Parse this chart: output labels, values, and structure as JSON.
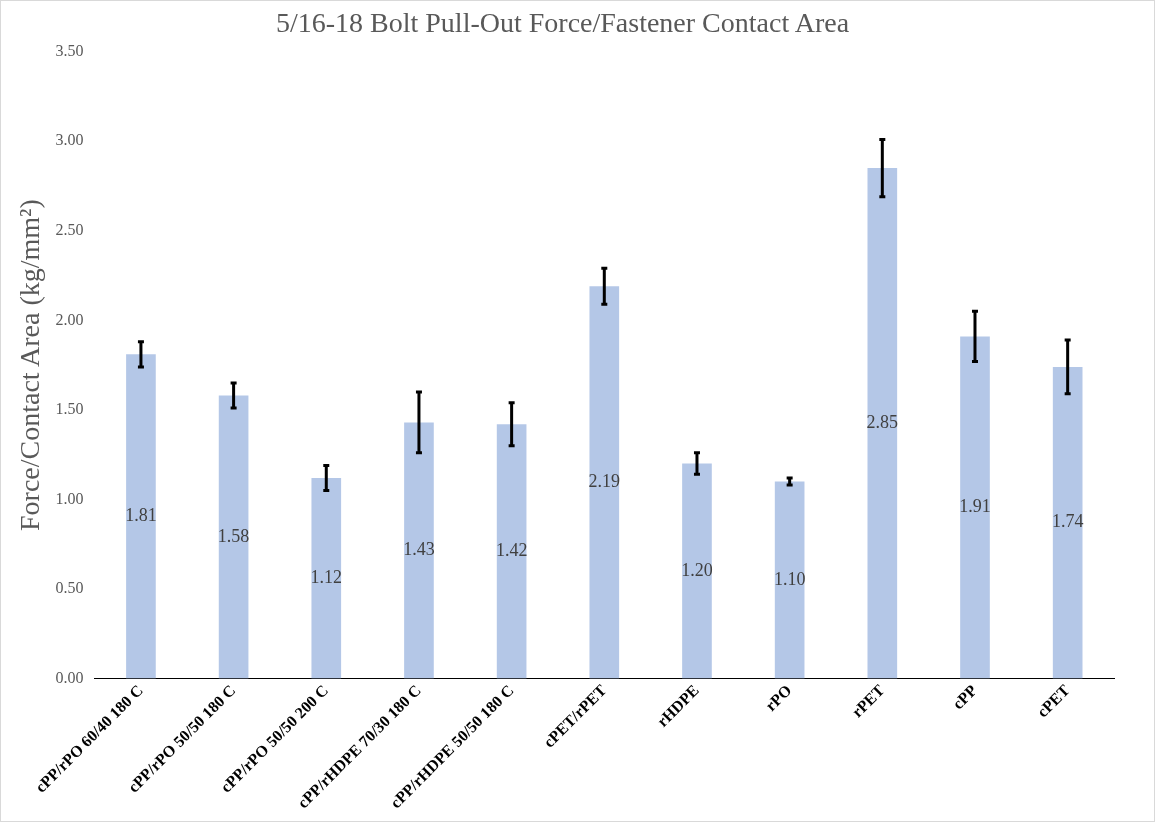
{
  "chart_data": {
    "type": "bar",
    "title": "5/16-18 Bolt Pull-Out Force/Fastener Contact Area",
    "ylabel": "Force/Contact Area (kg/mm²)",
    "categories": [
      "cPP/rPO 60/40 180 C",
      "cPP/rPO 50/50 180 C",
      "cPP/rPO 50/50 200 C",
      "cPP/rHDPE 70/30 180 C",
      "cPP/rHDPE 50/50 180 C",
      "cPET/rPET",
      "rHDPE",
      "rPO",
      "rPET",
      "cPP",
      "cPET"
    ],
    "values": [
      1.81,
      1.58,
      1.12,
      1.43,
      1.42,
      2.19,
      1.2,
      1.1,
      2.85,
      1.91,
      1.74
    ],
    "value_labels": [
      "1.81",
      "1.58",
      "1.12",
      "1.43",
      "1.42",
      "2.19",
      "1.20",
      "1.10",
      "2.85",
      "1.91",
      "1.74"
    ],
    "errors": [
      0.07,
      0.07,
      0.07,
      0.17,
      0.12,
      0.1,
      0.06,
      0.02,
      0.16,
      0.14,
      0.15
    ],
    "color": "#b4c7e7",
    "ylim": [
      0,
      3.5
    ],
    "yticks": [
      {
        "value": 0,
        "label": "0.00"
      },
      {
        "value": 0.5,
        "label": "0.50"
      },
      {
        "value": 1,
        "label": "1.00"
      },
      {
        "value": 1.5,
        "label": "1.50"
      },
      {
        "value": 2,
        "label": "2.00"
      },
      {
        "value": 2.5,
        "label": "2.50"
      },
      {
        "value": 3,
        "label": "3.00"
      },
      {
        "value": 3.5,
        "label": "3.50"
      }
    ],
    "grid": false,
    "legend": false
  }
}
